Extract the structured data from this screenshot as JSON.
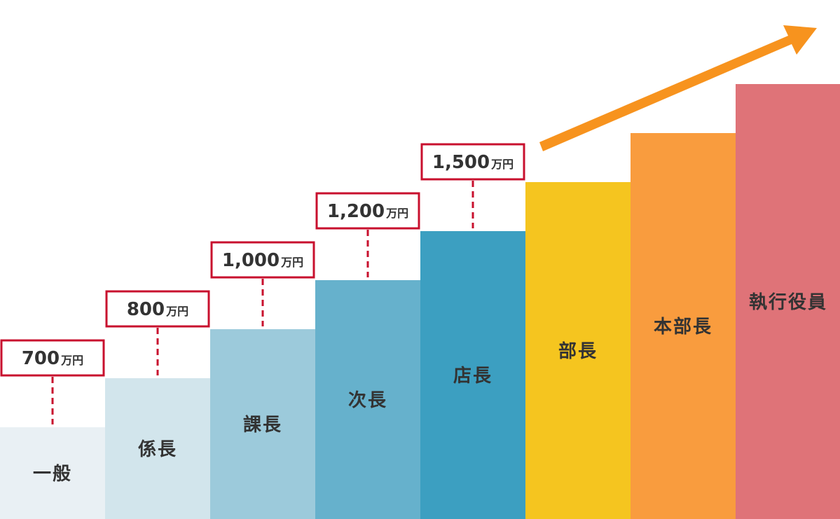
{
  "steps": [
    {
      "title": "一般",
      "salary": {
        "amount": "700",
        "unit": "万円"
      }
    },
    {
      "title": "係長",
      "salary": {
        "amount": "800",
        "unit": "万円"
      }
    },
    {
      "title": "課長",
      "salary": {
        "amount": "1,000",
        "unit": "万円"
      }
    },
    {
      "title": "次長",
      "salary": {
        "amount": "1,200",
        "unit": "万円"
      }
    },
    {
      "title": "店長",
      "salary": {
        "amount": "1,500",
        "unit": "万円"
      }
    },
    {
      "title": "部長"
    },
    {
      "title": "本部長"
    },
    {
      "title": "執行役員"
    }
  ]
}
